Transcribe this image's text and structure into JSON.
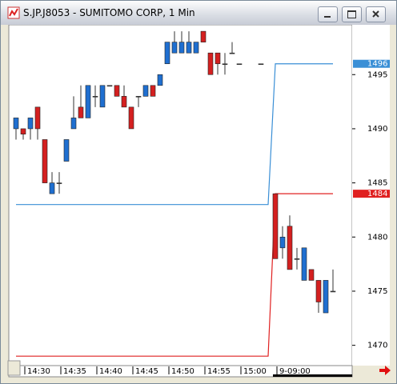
{
  "window_title": "S.JP.J8053 - SUMITOMO CORP, 1 Min",
  "chart_data": {
    "type": "candlestick",
    "categories": [
      null,
      "14:30",
      null,
      null,
      null,
      null,
      "14:35",
      null,
      null,
      null,
      null,
      "14:40",
      null,
      null,
      null,
      null,
      "14:45",
      null,
      null,
      null,
      null,
      "14:50",
      null,
      null,
      null,
      null,
      "14:55",
      null,
      null,
      null,
      null,
      "15:00",
      null,
      null,
      null,
      null,
      "9-09:00",
      null,
      null,
      null,
      null,
      null,
      null,
      null,
      null
    ],
    "open": [
      1490,
      1490,
      1490,
      1492,
      1489,
      1484,
      1485,
      1487,
      1490,
      1492,
      1491,
      1493,
      1492,
      1494,
      1494,
      1493,
      1492,
      1493,
      1493,
      1494,
      1494,
      1496,
      1497,
      1497,
      1497,
      1497,
      1499,
      1497,
      1497,
      1496,
      1497,
      1496,
      null,
      null,
      1496,
      null,
      1484,
      1479,
      1481,
      1478,
      1476,
      1477,
      1476,
      1473,
      1475
    ],
    "high": [
      1491,
      1490,
      1491,
      1492,
      1489,
      1486,
      1486,
      1489,
      1493,
      1494,
      1494,
      1494,
      1494,
      1494,
      1494,
      1494,
      1492,
      1493,
      1494,
      1494,
      1495,
      1498,
      1499,
      1499,
      1499,
      1498,
      1499,
      1497,
      1497,
      1497,
      1498,
      1496,
      null,
      null,
      1496,
      null,
      1484,
      1481,
      1482,
      1479,
      1479,
      1477,
      1476,
      1476,
      1477
    ],
    "low": [
      1489,
      1489,
      1489,
      1489,
      1485,
      1484,
      1484,
      1487,
      1490,
      1491,
      1491,
      1492,
      1492,
      1494,
      1493,
      1492,
      1490,
      1492,
      1493,
      1493,
      1494,
      1496,
      1497,
      1497,
      1497,
      1497,
      1498,
      1495,
      1495,
      1495,
      1497,
      1496,
      null,
      null,
      1496,
      null,
      1478,
      1478,
      1477,
      1477,
      1476,
      1476,
      1473,
      1473,
      1475
    ],
    "close": [
      1491,
      1489.5,
      1491,
      1490,
      1485,
      1485,
      1485,
      1489,
      1491,
      1491,
      1494,
      1493,
      1494,
      1494,
      1493,
      1492,
      1490,
      1493,
      1494,
      1493,
      1495,
      1498,
      1498,
      1498,
      1498,
      1498,
      1498,
      1495,
      1496,
      1496,
      1497,
      1496,
      null,
      null,
      1496,
      null,
      1478,
      1480,
      1477,
      1478,
      1479,
      1476,
      1474,
      1476,
      1475
    ],
    "up_color": "#1f6fd0",
    "down_color": "#d42020",
    "lines": [
      {
        "color": "#3a8fd6",
        "values": [
          1483,
          1483,
          1483,
          1483,
          1483,
          1483,
          1483,
          1483,
          1483,
          1483,
          1483,
          1483,
          1483,
          1483,
          1483,
          1483,
          1483,
          1483,
          1483,
          1483,
          1483,
          1483,
          1483,
          1483,
          1483,
          1483,
          1483,
          1483,
          1483,
          1483,
          1483,
          1483,
          1483,
          1483,
          1483,
          1483,
          1496,
          1496,
          1496,
          1496,
          1496,
          1496,
          1496,
          1496,
          1496
        ]
      },
      {
        "color": "#e02020",
        "values": [
          1469,
          1469,
          1469,
          1469,
          1469,
          1469,
          1469,
          1469,
          1469,
          1469,
          1469,
          1469,
          1469,
          1469,
          1469,
          1469,
          1469,
          1469,
          1469,
          1469,
          1469,
          1469,
          1469,
          1469,
          1469,
          1469,
          1469,
          1469,
          1469,
          1469,
          1469,
          1469,
          1469,
          1469,
          1469,
          1469,
          1484,
          1484,
          1484,
          1484,
          1484,
          1484,
          1484,
          1484,
          1484
        ]
      }
    ],
    "ylim": [
      1468.2,
      1499.6
    ],
    "yticks": [
      1470,
      1475,
      1480,
      1485,
      1490,
      1495
    ]
  }
}
